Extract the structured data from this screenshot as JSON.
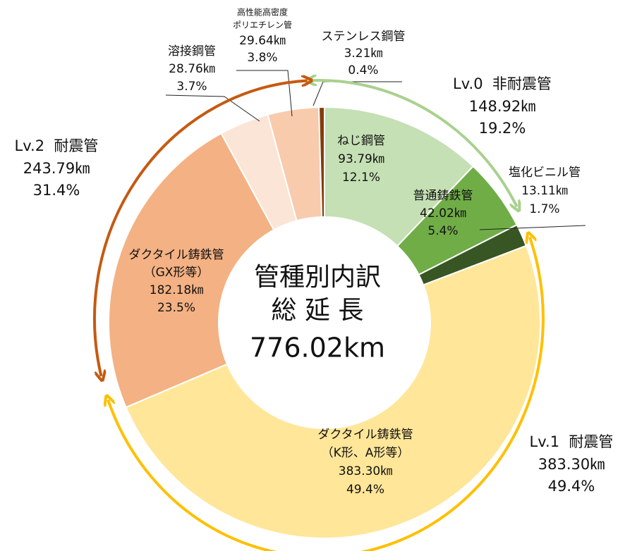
{
  "chart_data": {
    "type": "donut",
    "title": "管種別内訳",
    "subtitle": "総 延 長",
    "total": {
      "value": 776.02,
      "label": "776.02km"
    },
    "categories": [
      [
        "ねじ鋼管"
      ],
      [
        "普通鋳鉄管"
      ],
      [
        "塩化ビニル管"
      ],
      [
        "ダクタイル鋳鉄管",
        "（K形、A形等）"
      ],
      [
        "ダクタイル鋳鉄管",
        "（GX形等）"
      ],
      [
        "溶接鋼管"
      ],
      [
        "高性能高密度",
        "ポリエチレン管"
      ],
      [
        "ステンレス鋼管"
      ]
    ],
    "values": [
      93.79,
      42.02,
      13.11,
      383.3,
      182.18,
      28.76,
      29.64,
      3.21
    ],
    "value_labels": [
      "93.79㎞",
      "42.02㎞",
      "13.11㎞",
      "383.30㎞",
      "182.18㎞",
      "28.76㎞",
      "29.64㎞",
      "3.21㎞"
    ],
    "percents": [
      12.1,
      5.4,
      1.7,
      49.4,
      23.5,
      3.7,
      3.8,
      0.4
    ],
    "percent_labels": [
      "12.1%",
      "5.4%",
      "1.7%",
      "49.4%",
      "23.5%",
      "3.7%",
      "3.8%",
      "0.4%"
    ],
    "colors": [
      "#c5e0b4",
      "#70ad47",
      "#375623",
      "#ffe699",
      "#f4b183",
      "#fbe5d6",
      "#f8cbad",
      "#843c0c"
    ],
    "groups": [
      {
        "name": "Lv.0  非耐震管",
        "value": 148.92,
        "value_label": "148.92㎞",
        "percent": 19.2,
        "percent_label": "19.2%",
        "color": "#a9d18e"
      },
      {
        "name": "Lv.1  耐震管",
        "value": 383.3,
        "value_label": "383.30㎞",
        "percent": 49.4,
        "percent_label": "49.4%",
        "color": "#ffc000"
      },
      {
        "name": "Lv.2  耐震管",
        "value": 243.79,
        "value_label": "243.79㎞",
        "percent": 31.4,
        "percent_label": "31.4%",
        "color": "#c55a11"
      }
    ]
  }
}
